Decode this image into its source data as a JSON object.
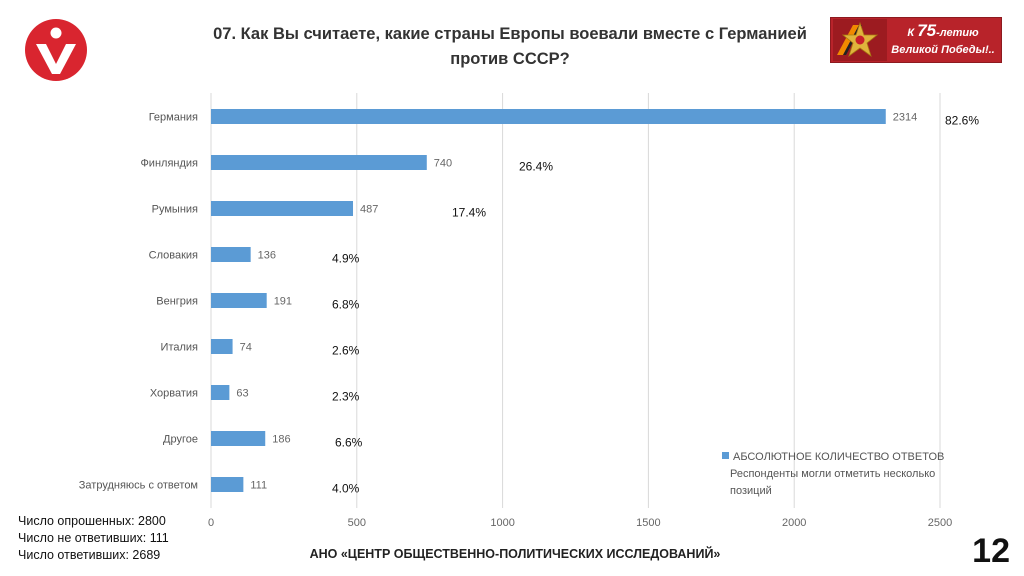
{
  "title": "07. Как Вы считаете, какие страны Европы воевали вместе с Германией против СССР?",
  "banner": {
    "line1_prefix": "К",
    "line1_number": "75",
    "line1_suffix": "-летию",
    "line2": "Великой Победы!.."
  },
  "colors": {
    "bar": "#5b9bd5",
    "logo": "#d9252f",
    "banner": "#b8232a"
  },
  "chart_data": {
    "type": "bar",
    "orientation": "horizontal",
    "categories": [
      "Германия",
      "Финляндия",
      "Румыния",
      "Словакия",
      "Венгрия",
      "Италия",
      "Хорватия",
      "Другое",
      "Затрудняюсь с ответом"
    ],
    "values": [
      2314,
      740,
      487,
      136,
      191,
      74,
      63,
      186,
      111
    ],
    "percent_labels": [
      "82.6%",
      "26.4%",
      "17.4%",
      "4.9%",
      "6.8%",
      "2.6%",
      "2.3%",
      "6.6%",
      "4.0%"
    ],
    "xlim": [
      0,
      2500
    ],
    "xticks": [
      0,
      500,
      1000,
      1500,
      2000,
      2500
    ],
    "grid": true,
    "legend": {
      "label": "АБСОЛЮТНОЕ КОЛИЧЕСТВО ОТВЕТОВ",
      "note": "Респонденты могли отметить несколько позиций",
      "position": "bottom-right"
    }
  },
  "footer": {
    "stats": [
      "Число опрошенных: 2800",
      "Число не ответивших: 111",
      "Число ответивших: 2689"
    ],
    "org": "АНО «ЦЕНТР ОБЩЕСТВЕННО-ПОЛИТИЧЕСКИХ ИССЛЕДОВАНИЙ»",
    "page_number": "12"
  }
}
